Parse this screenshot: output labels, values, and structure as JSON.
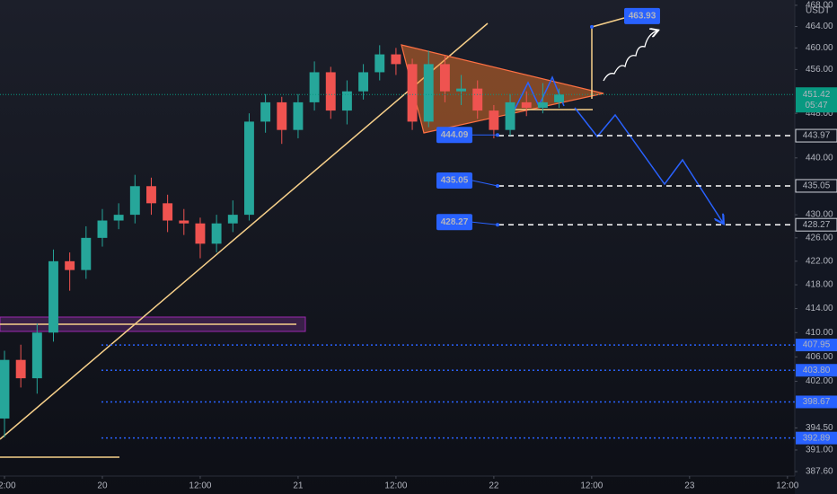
{
  "chart_data": {
    "type": "candlestick",
    "unit": "USDT",
    "log_scale": true,
    "xlim": [
      11.45,
      108.9
    ],
    "xticks": [
      {
        "value": 12,
        "label": "12:00"
      },
      {
        "value": 24,
        "label": "20"
      },
      {
        "value": 36,
        "label": "12:00"
      },
      {
        "value": 48,
        "label": "21"
      },
      {
        "value": 60,
        "label": "12:00"
      },
      {
        "value": 72,
        "label": "22"
      },
      {
        "value": 84,
        "label": "12:00"
      },
      {
        "value": 96,
        "label": "23"
      },
      {
        "value": 108,
        "label": "12:00"
      }
    ],
    "ylim": [
      386.9,
      469.0
    ],
    "yticks": [
      {
        "value": 468,
        "label": "468.00"
      },
      {
        "value": 464,
        "label": "464.00"
      },
      {
        "value": 460,
        "label": "460.00"
      },
      {
        "value": 456,
        "label": "456.00"
      },
      {
        "value": 448,
        "label": "448.00"
      },
      {
        "value": 440,
        "label": "440.00"
      },
      {
        "value": 430,
        "label": "430.00"
      },
      {
        "value": 426,
        "label": "426.00"
      },
      {
        "value": 422,
        "label": "422.00"
      },
      {
        "value": 418,
        "label": "418.00"
      },
      {
        "value": 414,
        "label": "414.00"
      },
      {
        "value": 410,
        "label": "410.00"
      },
      {
        "value": 406,
        "label": "406.00"
      },
      {
        "value": 402,
        "label": "402.00"
      },
      {
        "value": 394.5,
        "label": "394.50"
      },
      {
        "value": 391,
        "label": "391.00"
      },
      {
        "value": 387.6,
        "label": "387.60"
      }
    ],
    "up_color": "#26a69a",
    "down_color": "#ef5350",
    "x": [
      12,
      14,
      16,
      18,
      20,
      22,
      24,
      26,
      28,
      30,
      32,
      34,
      36,
      38,
      40,
      42,
      44,
      46,
      48,
      50,
      52,
      54,
      56,
      58,
      60,
      62,
      64,
      66,
      68,
      70,
      72,
      74,
      76,
      78,
      80
    ],
    "open": [
      396,
      405.5,
      402.5,
      410,
      422,
      420.5,
      426,
      429,
      430,
      435,
      432,
      429,
      428.5,
      425,
      428.5,
      430,
      446.5,
      450,
      445,
      450,
      455.5,
      448.5,
      452,
      455.5,
      458.8,
      457,
      446.5,
      457,
      452,
      452.5,
      448.5,
      445,
      450,
      449,
      450
    ],
    "high": [
      407,
      408,
      411.5,
      424,
      423.5,
      428,
      431,
      432,
      437,
      436.5,
      433.5,
      431,
      429.5,
      430,
      432.5,
      448,
      451.5,
      451,
      451.5,
      457.5,
      456.5,
      454,
      457,
      460.5,
      460,
      458,
      459.5,
      458.5,
      455,
      454,
      449.5,
      451.5,
      452,
      453.5,
      452.5
    ],
    "low": [
      393,
      401,
      400,
      408.5,
      417,
      419,
      424.5,
      427.5,
      428.5,
      430,
      427,
      426.5,
      422.5,
      423.5,
      427,
      429,
      444.5,
      442.5,
      443.5,
      448.5,
      447,
      446,
      450.5,
      454,
      455,
      445,
      445.5,
      450,
      449.5,
      447,
      443.5,
      444,
      447.5,
      448,
      449
    ],
    "close": [
      405.5,
      402.5,
      410,
      422,
      420.5,
      426,
      429,
      430,
      435,
      432,
      429,
      428.5,
      425,
      428.5,
      430,
      446.5,
      450,
      445,
      450,
      455.5,
      448.5,
      452,
      455.5,
      458.8,
      457,
      446.5,
      457,
      452,
      452.5,
      448.5,
      445,
      450,
      449,
      450,
      451.42
    ],
    "current_price": 451.42,
    "countdown": "05:47",
    "target_levels": [
      443.97,
      435.05,
      428.27
    ],
    "support_levels": [
      407.95,
      {
        "value": 403.8,
        "label": "403.80"
      },
      398.67,
      392.89
    ],
    "callouts": [
      463.93,
      444.09,
      435.05,
      428.27
    ]
  }
}
